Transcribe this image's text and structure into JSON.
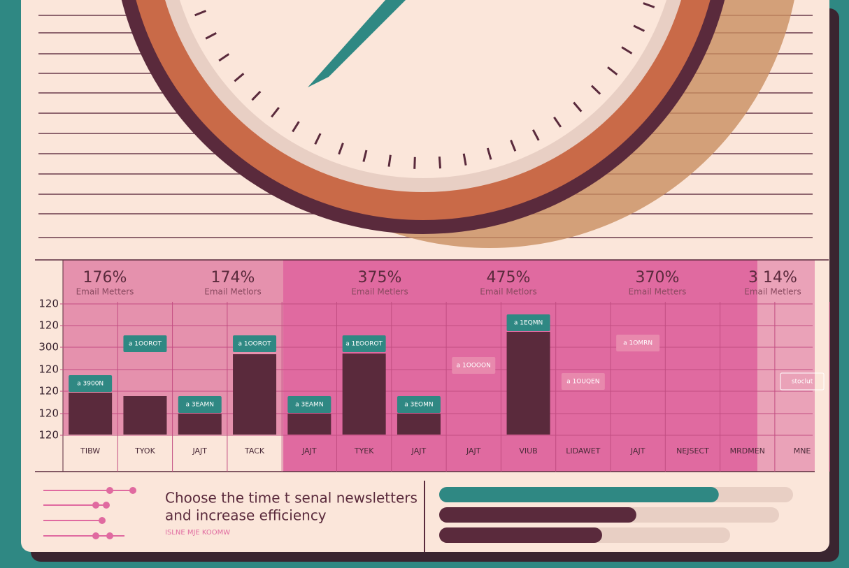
{
  "stats": [
    {
      "value": "176%",
      "label": "Email Metters"
    },
    {
      "value": "174%",
      "label": "Email Metlors"
    },
    {
      "value": "375%",
      "label": "Email Metlers"
    },
    {
      "value": "475%",
      "label": "Email Metlors"
    },
    {
      "value": "370%",
      "label": "Email Metters"
    },
    {
      "value": "3 14%",
      "label": "Email Metlers"
    }
  ],
  "y_axis_labels": [
    "120",
    "120",
    "300",
    "120",
    "120",
    "120",
    "120"
  ],
  "bars": {
    "categories": [
      "TIBW",
      "TYOK",
      "JAJT",
      "TACK",
      "JAJT",
      "TYEK",
      "JAJT",
      "JAJT",
      "VIUB",
      "LIDAWET",
      "JAJT",
      "NEJSECT",
      "MRDMEN",
      "MNE"
    ],
    "values": [
      60,
      55,
      30,
      115,
      30,
      116,
      30,
      null,
      147,
      null,
      null,
      null,
      null,
      null
    ],
    "tags": [
      "a 3900N",
      "a 1OOROT",
      "a 3EAMN",
      "a 1OOROT",
      "a 3EAMN",
      "a 1EOOROT",
      "a 3EOMN",
      "a 1OOOON",
      "a 1EQMN",
      "a 1OUQEN",
      "a 1OMRN",
      null,
      null,
      "stoclut"
    ],
    "color": "#5a2a3c",
    "ylim": [
      0,
      190
    ]
  },
  "caption": {
    "title_line1": "Choose the time t senal newsletters",
    "title_line2": "and increase efficiency",
    "subtitle": "ISLNE MJE KOOMW"
  },
  "progress": {
    "values": [
      79,
      58,
      56
    ],
    "colors": [
      "#2f8883",
      "#5a2a3c",
      "#5a2a3c"
    ],
    "max": 100
  }
}
